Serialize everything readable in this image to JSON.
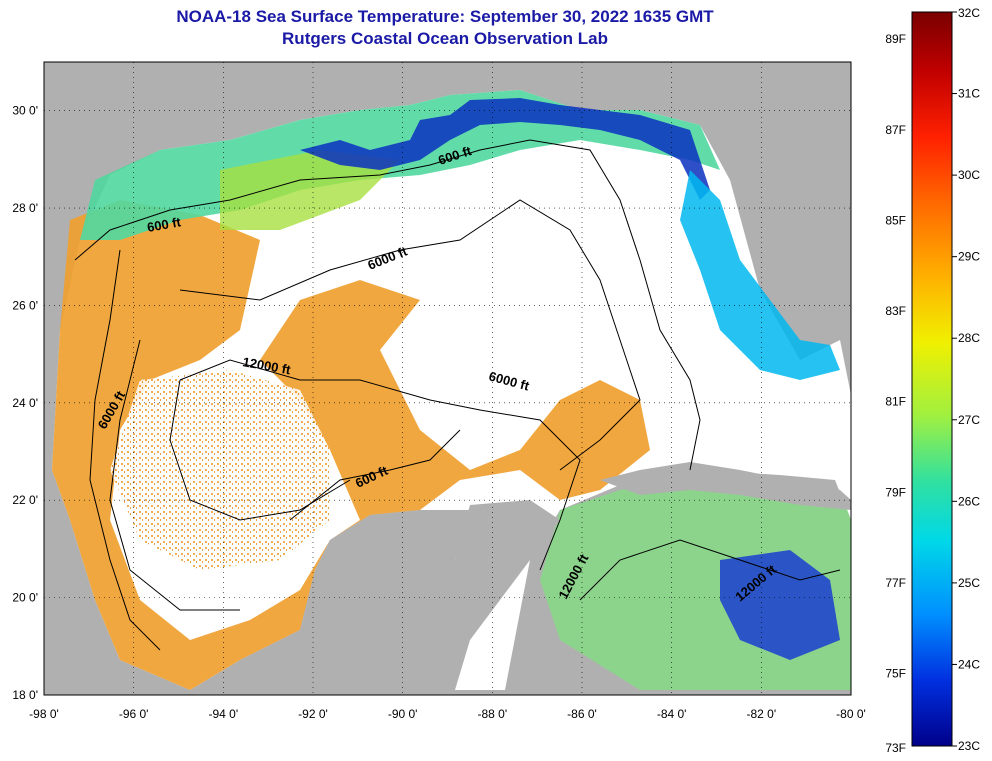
{
  "title": {
    "line1": "NOAA-18 Sea Surface Temperature:  September 30, 2022 1635 GMT",
    "line2": "Rutgers Coastal Ocean Observation Lab"
  },
  "axes": {
    "longitude_labels": [
      "-98 0'",
      "-96 0'",
      "-94 0'",
      "-92 0'",
      "-90 0'",
      "-88 0'",
      "-86 0'",
      "-84 0'",
      "-82 0'",
      "-80 0'"
    ],
    "latitude_labels": [
      "30 0'",
      "28 0'",
      "26 0'",
      "24 0'",
      "22 0'",
      "20 0'",
      "18 0'"
    ],
    "lon_range": [
      -98,
      -80
    ],
    "lat_range": [
      18,
      31
    ],
    "grid": "dotted"
  },
  "contour_labels": [
    "600 ft",
    "600 ft",
    "600 ft",
    "6000 ft",
    "6000 ft",
    "6000 ft",
    "12000 ft",
    "12000 ft",
    "12000 ft"
  ],
  "colorbar": {
    "fahrenheit_labels": [
      "89F",
      "87F",
      "85F",
      "83F",
      "81F",
      "79F",
      "77F",
      "75F",
      "73F"
    ],
    "celsius_labels": [
      "32C",
      "31C",
      "30C",
      "29C",
      "28C",
      "27C",
      "26C",
      "25C",
      "24C",
      "23C"
    ],
    "range_c": [
      23,
      32
    ],
    "colors": [
      "#7a0000",
      "#c00000",
      "#ff2000",
      "#ff7000",
      "#ffb000",
      "#f0f000",
      "#a0f040",
      "#30e0a0",
      "#00d8e8",
      "#0090ff",
      "#0030e0",
      "#00008a"
    ]
  },
  "land_color": "#b0b0b0",
  "no_data_color": "#ffffff"
}
